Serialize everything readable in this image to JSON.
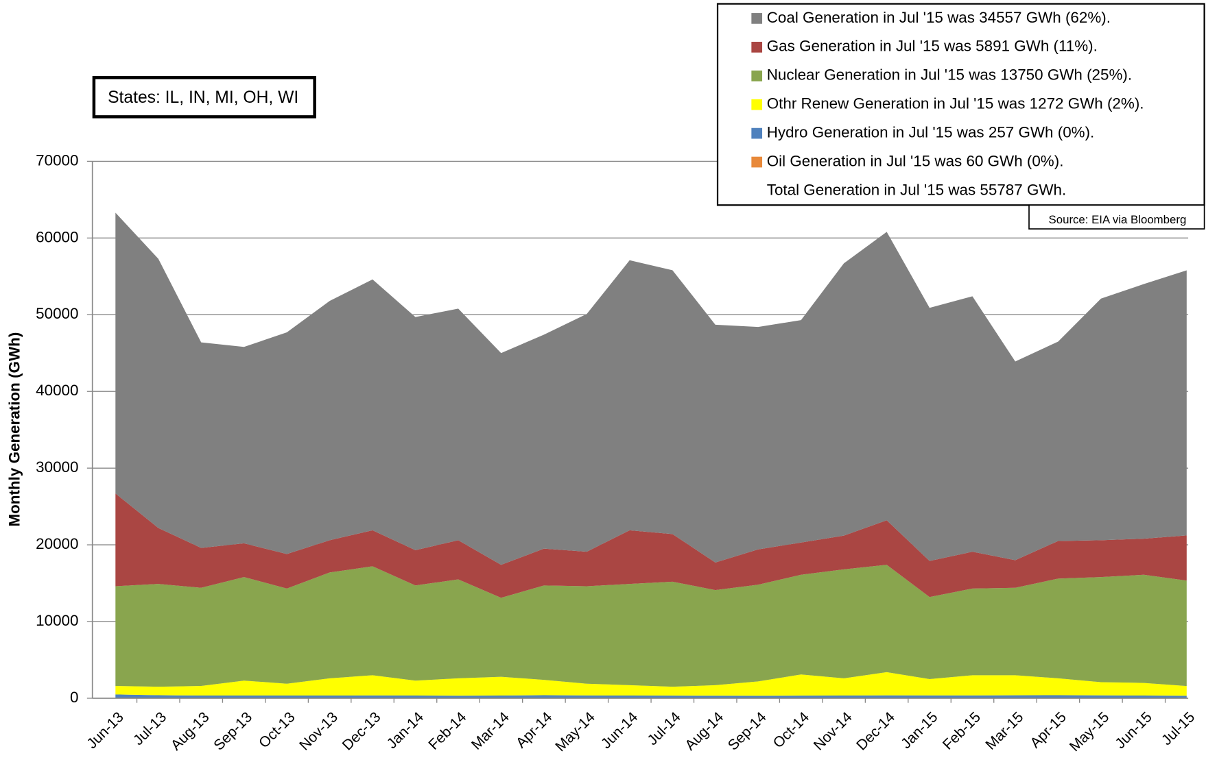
{
  "chart_data": {
    "type": "stacked_area",
    "annotation": "States: IL, IN, MI, OH, WI",
    "source": "Source: EIA via Bloomberg",
    "legend_note": "Total Generation in Jul '15 was 55787 GWh.",
    "y_label": "Monthly Generation (GWh)",
    "legend_position": "top-right",
    "grid": true,
    "ylim": [
      0,
      70000
    ],
    "yticks": [
      0,
      10000,
      20000,
      30000,
      40000,
      50000,
      60000,
      70000
    ],
    "categories": [
      "Jun-13",
      "Jul-13",
      "Aug-13",
      "Sep-13",
      "Oct-13",
      "Nov-13",
      "Dec-13",
      "Jan-14",
      "Feb-14",
      "Mar-14",
      "Apr-14",
      "May-14",
      "Jun-14",
      "Jul-14",
      "Aug-14",
      "Sep-14",
      "Oct-14",
      "Nov-14",
      "Dec-14",
      "Jan-15",
      "Feb-15",
      "Mar-15",
      "Apr-15",
      "May-15",
      "Jun-15",
      "Jul-15"
    ],
    "series": [
      {
        "name": "Coal Generation in Jul '15 was 34557 GWh (62%).",
        "color": "#808080",
        "values": [
          36600,
          35100,
          26800,
          25600,
          28900,
          31200,
          32700,
          30400,
          30200,
          27600,
          27900,
          31000,
          35200,
          34400,
          31000,
          29000,
          29000,
          35500,
          37600,
          33000,
          33300,
          25900,
          26000,
          31500,
          33200,
          34557
        ]
      },
      {
        "name": "Gas Generation in Jul '15 was 5891 GWh (11%).",
        "color": "#aa4643",
        "values": [
          12100,
          7300,
          5200,
          4400,
          4500,
          4200,
          4700,
          4600,
          5100,
          4300,
          4800,
          4500,
          7000,
          6200,
          3600,
          4600,
          4200,
          4400,
          5800,
          4700,
          4800,
          3600,
          4900,
          4800,
          4700,
          5891
        ]
      },
      {
        "name": "Nuclear Generation in Jul '15 was 13750 GWh (25%).",
        "color": "#89a54e",
        "values": [
          13000,
          13400,
          12800,
          13500,
          12400,
          13800,
          14200,
          12400,
          12900,
          10300,
          12300,
          12700,
          13200,
          13700,
          12400,
          12600,
          13000,
          14200,
          14000,
          10700,
          11300,
          11400,
          13000,
          13700,
          14100,
          13750
        ]
      },
      {
        "name": "Othr Renew Generation in Jul '15 was 1272 GWh (2%).",
        "color": "#ffff00",
        "values": [
          1100,
          1100,
          1250,
          1950,
          1550,
          2250,
          2640,
          1950,
          2270,
          2450,
          2000,
          1530,
          1350,
          1160,
          1370,
          1880,
          2760,
          2250,
          3020,
          2130,
          2630,
          2610,
          2200,
          1720,
          1650,
          1272
        ]
      },
      {
        "name": "Hydro Generation in Jul '15 was 257 GWh (0%).",
        "color": "#4f81bd",
        "values": [
          410,
          320,
          280,
          280,
          280,
          280,
          280,
          270,
          260,
          280,
          330,
          300,
          280,
          270,
          260,
          250,
          270,
          280,
          300,
          290,
          300,
          320,
          330,
          320,
          290,
          257
        ]
      },
      {
        "name": "Oil Generation in Jul '15 was 60 GWh (0%).",
        "color": "#e8893a",
        "values": [
          90,
          80,
          70,
          70,
          70,
          70,
          80,
          80,
          70,
          70,
          70,
          70,
          70,
          70,
          70,
          70,
          70,
          70,
          80,
          80,
          70,
          70,
          70,
          60,
          60,
          60
        ]
      }
    ]
  }
}
